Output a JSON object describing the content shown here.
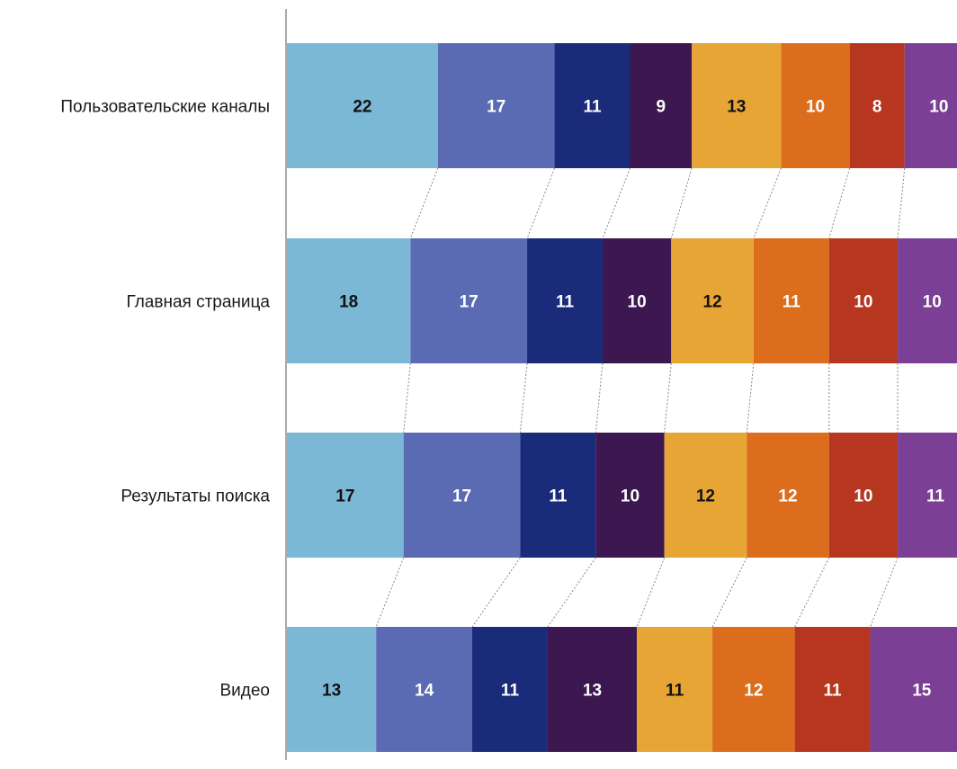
{
  "chart_data": {
    "type": "bar",
    "orientation": "horizontal",
    "stacked": true,
    "connector_lines": true,
    "grid": false,
    "categories": [
      "Пользовательские каналы",
      "Главная страница",
      "Результаты поиска",
      "Видео"
    ],
    "series": [
      {
        "values": [
          22,
          18,
          17,
          13
        ],
        "color": "#7ab8d6"
      },
      {
        "values": [
          17,
          17,
          17,
          14
        ],
        "color": "#5b6bb3"
      },
      {
        "values": [
          11,
          11,
          11,
          11
        ],
        "color": "#1a2b7a"
      },
      {
        "values": [
          9,
          10,
          10,
          13
        ],
        "color": "#3d1850"
      },
      {
        "values": [
          13,
          12,
          12,
          11
        ],
        "color": "#e7a535"
      },
      {
        "values": [
          10,
          11,
          12,
          12
        ],
        "color": "#dc6d1c"
      },
      {
        "values": [
          8,
          10,
          10,
          11
        ],
        "color": "#b7361f"
      },
      {
        "values": [
          10,
          10,
          11,
          15
        ],
        "color": "#7b3f96"
      }
    ],
    "label_colors": [
      "#111111",
      "#ffffff",
      "#ffffff",
      "#ffffff",
      "#111111",
      "#ffffff",
      "#ffffff",
      "#ffffff"
    ]
  }
}
